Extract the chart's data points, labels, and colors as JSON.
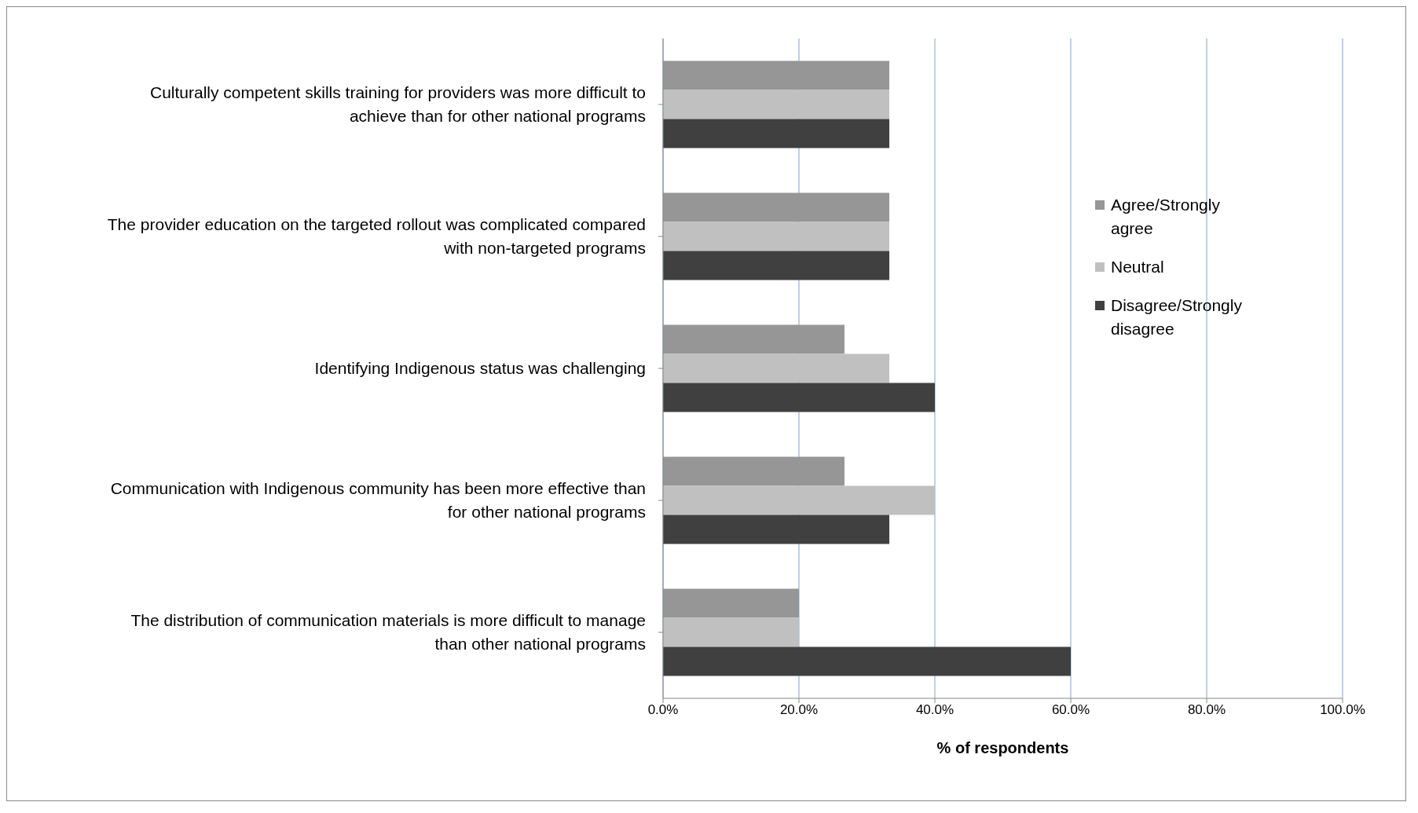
{
  "chart_data": {
    "type": "bar",
    "orientation": "horizontal",
    "xlabel": "% of respondents",
    "categories": [
      "Culturally competent skills training for providers was more difficult to achieve than for other national programs",
      "The provider education on the targeted rollout was complicated compared with non-targeted programs",
      "Identifying Indigenous status was challenging",
      "Communication with Indigenous community has been more effective than for other national programs",
      "The distribution of communication materials is more difficult to manage than other national programs"
    ],
    "series": [
      {
        "name": "Agree/Strongly agree",
        "color": "#969696",
        "values": [
          33.3,
          33.3,
          26.7,
          26.7,
          20
        ]
      },
      {
        "name": "Neutral",
        "color": "#c0c0c0",
        "values": [
          33.3,
          33.3,
          33.3,
          40,
          20
        ]
      },
      {
        "name": "Disagree/Strongly disagree",
        "color": "#404040",
        "values": [
          33.3,
          33.3,
          40,
          33.3,
          60
        ]
      }
    ],
    "xlim": [
      0,
      100
    ],
    "xticks": [
      {
        "value": 0,
        "label": "0.0%"
      },
      {
        "value": 20,
        "label": "20.0%"
      },
      {
        "value": 40,
        "label": "40.0%"
      },
      {
        "value": 60,
        "label": "60.0%"
      },
      {
        "value": 80,
        "label": "80.0%"
      },
      {
        "value": 100,
        "label": "100.0%"
      }
    ],
    "grid": "x",
    "legend": "right"
  }
}
